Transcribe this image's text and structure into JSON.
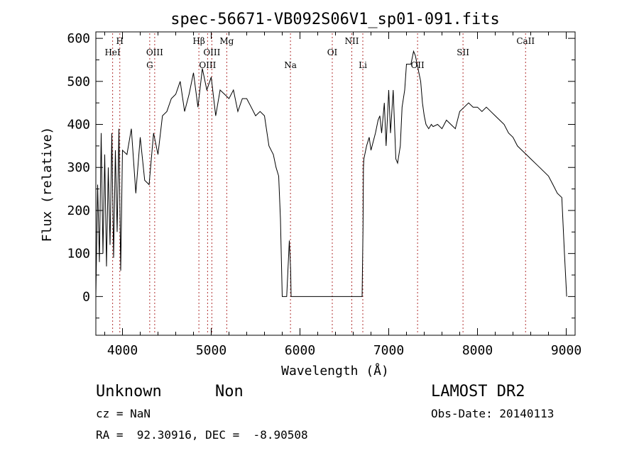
{
  "chart_data": {
    "type": "line",
    "title": "spec-56671-VB092S06V1_sp01-091.fits",
    "xlabel": "Wavelength (Å)",
    "ylabel": "Flux (relative)",
    "xlim": [
      3700,
      9100
    ],
    "ylim": [
      -90,
      615
    ],
    "xticks": [
      4000,
      5000,
      6000,
      7000,
      8000,
      9000
    ],
    "yticks": [
      0,
      100,
      200,
      300,
      400,
      500,
      600
    ],
    "grid": false,
    "line_color": "#000000",
    "marker_color": "#b03030",
    "markers": [
      {
        "label": "HeI",
        "x": 3889,
        "row": 2
      },
      {
        "label": "H",
        "x": 3970,
        "row": 1
      },
      {
        "label": "OIII",
        "x": 4363,
        "row": 2
      },
      {
        "label": "G",
        "x": 4307,
        "row": 3
      },
      {
        "label": "Hβ",
        "x": 4861,
        "row": 1
      },
      {
        "label": "OIII",
        "x": 5007,
        "row": 2
      },
      {
        "label": "OIII",
        "x": 4959,
        "row": 3
      },
      {
        "label": "Mg",
        "x": 5175,
        "row": 1
      },
      {
        "label": "Na",
        "x": 5893,
        "row": 3
      },
      {
        "label": "OI",
        "x": 6364,
        "row": 2
      },
      {
        "label": "NII",
        "x": 6584,
        "row": 1
      },
      {
        "label": "Li",
        "x": 6708,
        "row": 3
      },
      {
        "label": "OII",
        "x": 7325,
        "row": 3
      },
      {
        "label": "SII",
        "x": 7837,
        "row": 2
      },
      {
        "label": "CaII",
        "x": 8542,
        "row": 1
      }
    ],
    "series": [
      {
        "x": [
          3700,
          3720,
          3740,
          3760,
          3780,
          3800,
          3820,
          3840,
          3860,
          3880,
          3900,
          3920,
          3940,
          3960,
          3980,
          4000,
          4050,
          4100,
          4150,
          4200,
          4250,
          4300,
          4350,
          4400,
          4450,
          4500,
          4550,
          4600,
          4650,
          4700,
          4750,
          4800,
          4850,
          4900,
          4950,
          5000,
          5050,
          5100,
          5150,
          5200,
          5250,
          5300,
          5350,
          5400,
          5450,
          5500,
          5550,
          5600,
          5650,
          5700,
          5730,
          5760,
          5780,
          5800,
          5820,
          5850,
          5880,
          5895,
          5900,
          5910,
          5920,
          5950,
          6000,
          6500,
          6700,
          6710,
          6715,
          6720,
          6730,
          6750,
          6780,
          6800,
          6850,
          6880,
          6900,
          6920,
          6950,
          6970,
          7000,
          7020,
          7050,
          7080,
          7100,
          7130,
          7150,
          7180,
          7200,
          7250,
          7280,
          7300,
          7320,
          7340,
          7360,
          7380,
          7400,
          7420,
          7450,
          7480,
          7500,
          7550,
          7600,
          7650,
          7700,
          7750,
          7800,
          7850,
          7900,
          7950,
          8000,
          8050,
          8100,
          8150,
          8200,
          8250,
          8300,
          8350,
          8400,
          8450,
          8500,
          8550,
          8600,
          8650,
          8700,
          8750,
          8800,
          8850,
          8900,
          8950,
          8980,
          9000,
          9005
        ],
        "y": [
          0,
          260,
          80,
          380,
          100,
          330,
          70,
          300,
          120,
          380,
          90,
          340,
          150,
          390,
          60,
          340,
          330,
          390,
          240,
          370,
          270,
          260,
          380,
          330,
          420,
          430,
          460,
          470,
          500,
          430,
          470,
          520,
          440,
          530,
          480,
          510,
          420,
          480,
          470,
          460,
          480,
          430,
          460,
          460,
          440,
          420,
          430,
          420,
          350,
          330,
          300,
          280,
          180,
          0,
          0,
          0,
          130,
          60,
          0,
          0,
          0,
          0,
          0,
          0,
          0,
          160,
          300,
          320,
          330,
          350,
          370,
          340,
          380,
          410,
          420,
          380,
          450,
          350,
          480,
          380,
          480,
          320,
          310,
          350,
          440,
          480,
          540,
          540,
          570,
          560,
          540,
          520,
          500,
          450,
          420,
          400,
          390,
          400,
          395,
          400,
          390,
          410,
          400,
          390,
          430,
          440,
          450,
          440,
          440,
          430,
          440,
          430,
          420,
          410,
          400,
          380,
          370,
          350,
          340,
          330,
          320,
          310,
          300,
          290,
          280,
          260,
          240,
          230,
          100,
          20,
          0
        ]
      }
    ]
  },
  "footer": {
    "object_class": "Unknown",
    "object_subclass": "Non",
    "cz": "cz = NaN",
    "coords": "RA =  92.30916, DEC =  -8.90508",
    "release": "LAMOST DR2",
    "obs_date": "Obs-Date: 20140113"
  }
}
